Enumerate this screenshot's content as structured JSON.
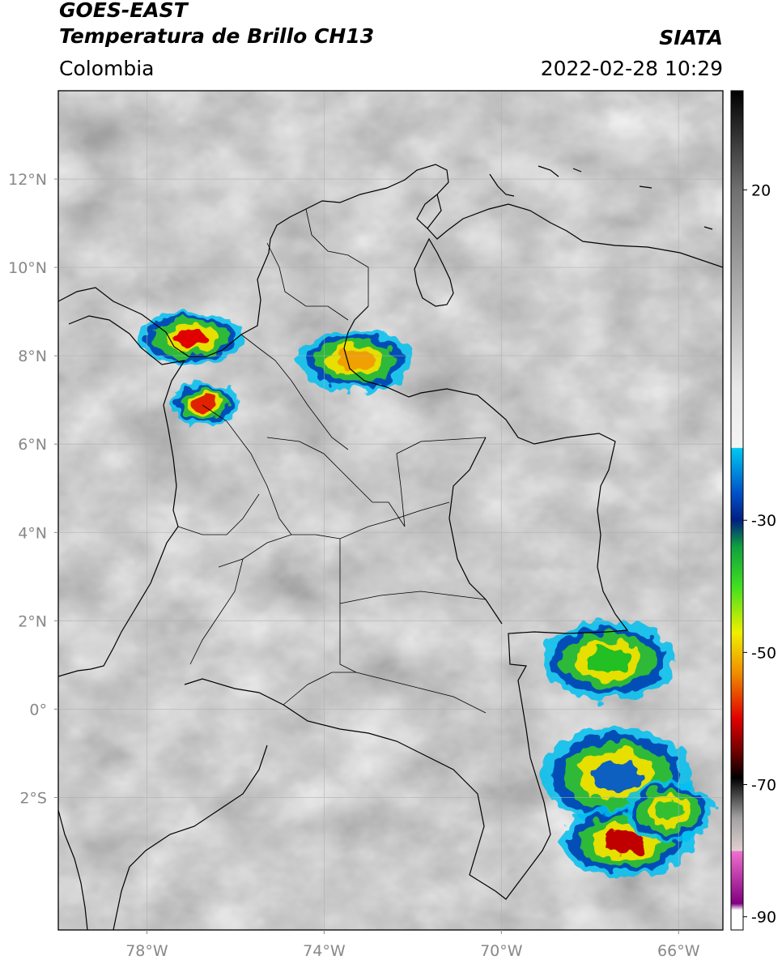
{
  "header": {
    "satellite": "GOES-EAST",
    "product": "Temperatura de Brillo CH13",
    "region": "Colombia",
    "brand": "SIATA",
    "datetime": "2022-02-28 10:29"
  },
  "map": {
    "lon_range": [
      -80,
      -65
    ],
    "lat_range": [
      -5,
      14
    ],
    "lon_ticks": [
      {
        "value": -78,
        "label": "78°W"
      },
      {
        "value": -74,
        "label": "74°W"
      },
      {
        "value": -70,
        "label": "70°W"
      },
      {
        "value": -66,
        "label": "66°W"
      }
    ],
    "lat_ticks": [
      {
        "value": 12,
        "label": "12°N"
      },
      {
        "value": 10,
        "label": "10°N"
      },
      {
        "value": 8,
        "label": "8°N"
      },
      {
        "value": 6,
        "label": "6°N"
      },
      {
        "value": 4,
        "label": "4°N"
      },
      {
        "value": 2,
        "label": "2°N"
      },
      {
        "value": 0,
        "label": "0°"
      },
      {
        "value": -2,
        "label": "2°S"
      }
    ],
    "grid": true,
    "storms": [
      {
        "lon": -77.0,
        "lat": 8.4,
        "rx": 1.2,
        "ry": 0.6,
        "core": "#e00000"
      },
      {
        "lon": -76.7,
        "lat": 6.9,
        "rx": 0.8,
        "ry": 0.5,
        "core": "#e02000"
      },
      {
        "lon": -73.3,
        "lat": 7.9,
        "rx": 1.3,
        "ry": 0.7,
        "core": "#f0a000"
      },
      {
        "lon": -67.6,
        "lat": 1.1,
        "rx": 1.5,
        "ry": 0.9,
        "core": "#20c020"
      },
      {
        "lon": -67.4,
        "lat": -1.5,
        "rx": 1.7,
        "ry": 1.1,
        "core": "#1060c0"
      },
      {
        "lon": -67.2,
        "lat": -3.0,
        "rx": 1.5,
        "ry": 0.8,
        "core": "#c00000"
      },
      {
        "lon": -66.2,
        "lat": -2.3,
        "rx": 1.0,
        "ry": 0.7,
        "core": "#30c030"
      }
    ]
  },
  "colorbar": {
    "tmin": -92,
    "tmax": 35,
    "ticks": [
      {
        "value": 20,
        "label": "20"
      },
      {
        "value": -30,
        "label": "-30"
      },
      {
        "value": -50,
        "label": "-50"
      },
      {
        "value": -70,
        "label": "-70"
      },
      {
        "value": -90,
        "label": "-90"
      }
    ],
    "stops": [
      {
        "t": 35,
        "color": "#000000"
      },
      {
        "t": 20,
        "color": "#707070"
      },
      {
        "t": -10,
        "color": "#e8e8e8"
      },
      {
        "t": -19,
        "color": "#f4f4f4"
      },
      {
        "t": -19.1,
        "color": "#00c8f0"
      },
      {
        "t": -26,
        "color": "#0050c8"
      },
      {
        "t": -30,
        "color": "#002080"
      },
      {
        "t": -34,
        "color": "#10a040"
      },
      {
        "t": -40,
        "color": "#40e020"
      },
      {
        "t": -47,
        "color": "#f0f000"
      },
      {
        "t": -53,
        "color": "#f09000"
      },
      {
        "t": -60,
        "color": "#e00000"
      },
      {
        "t": -65,
        "color": "#700000"
      },
      {
        "t": -69,
        "color": "#000000"
      },
      {
        "t": -75,
        "color": "#a0a0a0"
      },
      {
        "t": -80,
        "color": "#e0d0d0"
      },
      {
        "t": -80.1,
        "color": "#f070d0"
      },
      {
        "t": -88,
        "color": "#800080"
      },
      {
        "t": -89,
        "color": "#ffffff"
      },
      {
        "t": -92,
        "color": "#ffffff"
      }
    ]
  }
}
